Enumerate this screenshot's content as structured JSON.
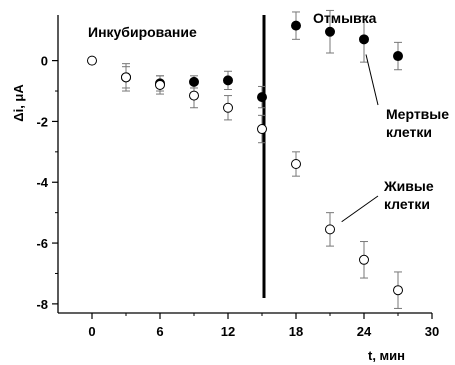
{
  "chart_data": {
    "type": "scatter",
    "xlabel": "t, мин",
    "ylabel": "Δi, μA",
    "xlim": [
      -3,
      30
    ],
    "ylim": [
      -8.3,
      1.5
    ],
    "x_ticks": [
      0,
      6,
      12,
      18,
      24,
      30
    ],
    "y_ticks": [
      0,
      -2,
      -4,
      -6,
      -8
    ],
    "x_tick_labels": [
      "0",
      "6",
      "12",
      "18",
      "24",
      "30"
    ],
    "y_tick_labels": [
      "0",
      "-2",
      "-4",
      "-6",
      "-8"
    ],
    "divider_x": 15,
    "phase_labels": [
      "Инкубирование",
      "Отмывка"
    ],
    "series": [
      {
        "name": "Мертвые клетки",
        "marker": "filled",
        "points": [
          {
            "x": 3,
            "y": -0.55,
            "err": 0.35
          },
          {
            "x": 6,
            "y": -0.75,
            "err": 0.25
          },
          {
            "x": 9,
            "y": -0.7,
            "err": 0.2
          },
          {
            "x": 12,
            "y": -0.65,
            "err": 0.3
          },
          {
            "x": 15,
            "y": -1.2,
            "err": 0.35
          },
          {
            "x": 18,
            "y": 1.15,
            "err": 0.45
          },
          {
            "x": 21,
            "y": 0.95,
            "err": 0.7
          },
          {
            "x": 24,
            "y": 0.7,
            "err": 0.75
          },
          {
            "x": 27,
            "y": 0.15,
            "err": 0.45
          }
        ]
      },
      {
        "name": "Живые клетки",
        "marker": "open",
        "points": [
          {
            "x": 0,
            "y": 0.0,
            "err": 0
          },
          {
            "x": 3,
            "y": -0.55,
            "err": 0.45
          },
          {
            "x": 6,
            "y": -0.8,
            "err": 0.3
          },
          {
            "x": 9,
            "y": -1.15,
            "err": 0.4
          },
          {
            "x": 12,
            "y": -1.55,
            "err": 0.4
          },
          {
            "x": 15,
            "y": -2.25,
            "err": 0.45
          },
          {
            "x": 18,
            "y": -3.4,
            "err": 0.4
          },
          {
            "x": 21,
            "y": -5.55,
            "err": 0.55
          },
          {
            "x": 24,
            "y": -6.55,
            "err": 0.6
          },
          {
            "x": 27,
            "y": -7.55,
            "err": 0.6
          }
        ]
      }
    ],
    "annotations": [
      {
        "text_lines": [
          "Мертвые",
          "клетки"
        ],
        "points_to": {
          "x": 24,
          "y": 0.2
        }
      },
      {
        "text_lines": [
          "Живые",
          "клетки"
        ],
        "points_to": {
          "x": 21.5,
          "y": -5.3
        }
      }
    ]
  }
}
